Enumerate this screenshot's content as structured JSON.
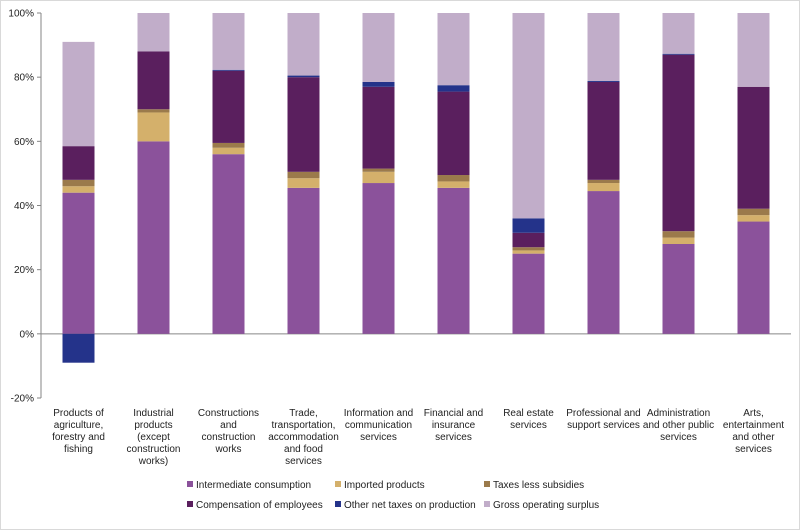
{
  "chart_data": {
    "type": "bar",
    "stacked": true,
    "title": "",
    "xlabel": "",
    "ylabel": "",
    "ylim": [
      -20,
      100
    ],
    "yticks": [
      -20,
      0,
      20,
      40,
      60,
      80,
      100
    ],
    "ytick_format": "%",
    "grid": false,
    "legend_position": "bottom",
    "categories": [
      [
        "Products of",
        "agriculture,",
        "forestry and",
        "fishing"
      ],
      [
        "Industrial",
        "products",
        "(except",
        "construction",
        "works)"
      ],
      [
        "Constructions",
        "and",
        "construction",
        "works"
      ],
      [
        "Trade,",
        "transportation,",
        "accommodation",
        "and food",
        "services"
      ],
      [
        "Information and",
        "communication",
        "services"
      ],
      [
        "Financial and",
        "insurance",
        "services"
      ],
      [
        "Real estate",
        "services"
      ],
      [
        "Professional and",
        "support services"
      ],
      [
        "Administration",
        "and other public",
        "services"
      ],
      [
        "Arts,",
        "entertainment",
        "and other",
        "services"
      ]
    ],
    "series": [
      {
        "name": "Intermediate consumption",
        "color": "#8b529b",
        "values": [
          44,
          60,
          56,
          45.5,
          47,
          45.5,
          25,
          44.5,
          28,
          35
        ]
      },
      {
        "name": "Imported products",
        "color": "#d4b06b",
        "values": [
          2,
          9,
          2,
          3,
          3.5,
          2,
          1,
          2.5,
          2,
          2
        ]
      },
      {
        "name": "Taxes less subsidies",
        "color": "#9b7a4b",
        "values": [
          2,
          1,
          1.5,
          2,
          1,
          2,
          1,
          1,
          2,
          2
        ]
      },
      {
        "name": "Compensation of employees",
        "color": "#5a1f5e",
        "values": [
          10.5,
          18,
          22.5,
          29.5,
          25.5,
          26,
          4.5,
          30.5,
          55,
          38
        ]
      },
      {
        "name": "Other net taxes on production",
        "color": "#24338a",
        "values": [
          -9,
          0,
          0.3,
          0.5,
          1.5,
          2,
          4.5,
          0.3,
          0.3,
          0
        ]
      },
      {
        "name": "Gross operating surplus",
        "color": "#c1adc9",
        "values": [
          32.5,
          12,
          17.7,
          19.5,
          21.5,
          22.5,
          64,
          21.2,
          12.7,
          23
        ]
      }
    ]
  }
}
